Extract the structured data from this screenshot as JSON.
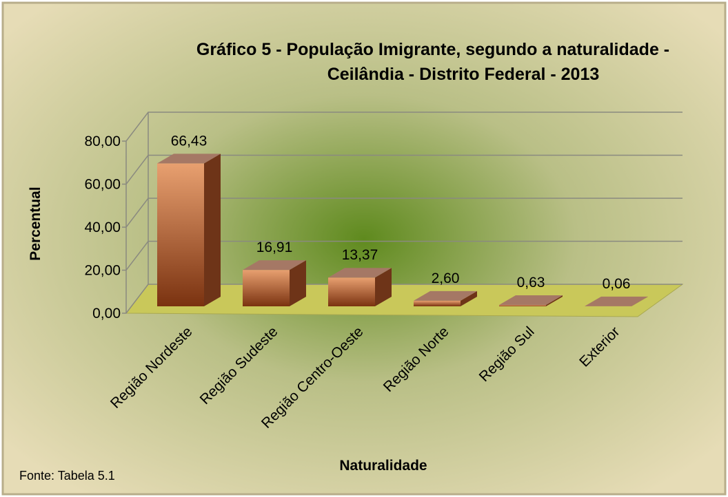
{
  "chart_data": {
    "type": "bar3d",
    "title": [
      "Gráfico 5 - População Imigrante, segundo a naturalidade -",
      "Ceilândia - Distrito Federal - 2013"
    ],
    "categories": [
      "Região Nordeste",
      "Região Sudeste",
      "Região Centro-Oeste",
      "Região Norte",
      "Região Sul",
      "Exterior"
    ],
    "values": [
      66.43,
      16.91,
      13.37,
      2.6,
      0.63,
      0.06
    ],
    "value_labels": [
      "66,43",
      "16,91",
      "13,37",
      "2,60",
      "0,63",
      "0,06"
    ],
    "color": "#c8703a",
    "ylim": [
      0,
      80
    ],
    "yticks": [
      {
        "value": 0,
        "label": "0,00"
      },
      {
        "value": 20,
        "label": "20,00"
      },
      {
        "value": 40,
        "label": "40,00"
      },
      {
        "value": 60,
        "label": "60,00"
      },
      {
        "value": 80,
        "label": "80,00"
      }
    ],
    "y_label": "Percentual",
    "x_label": "Naturalidade",
    "source": "Fonte: Tabela 5.1",
    "grid": true
  }
}
